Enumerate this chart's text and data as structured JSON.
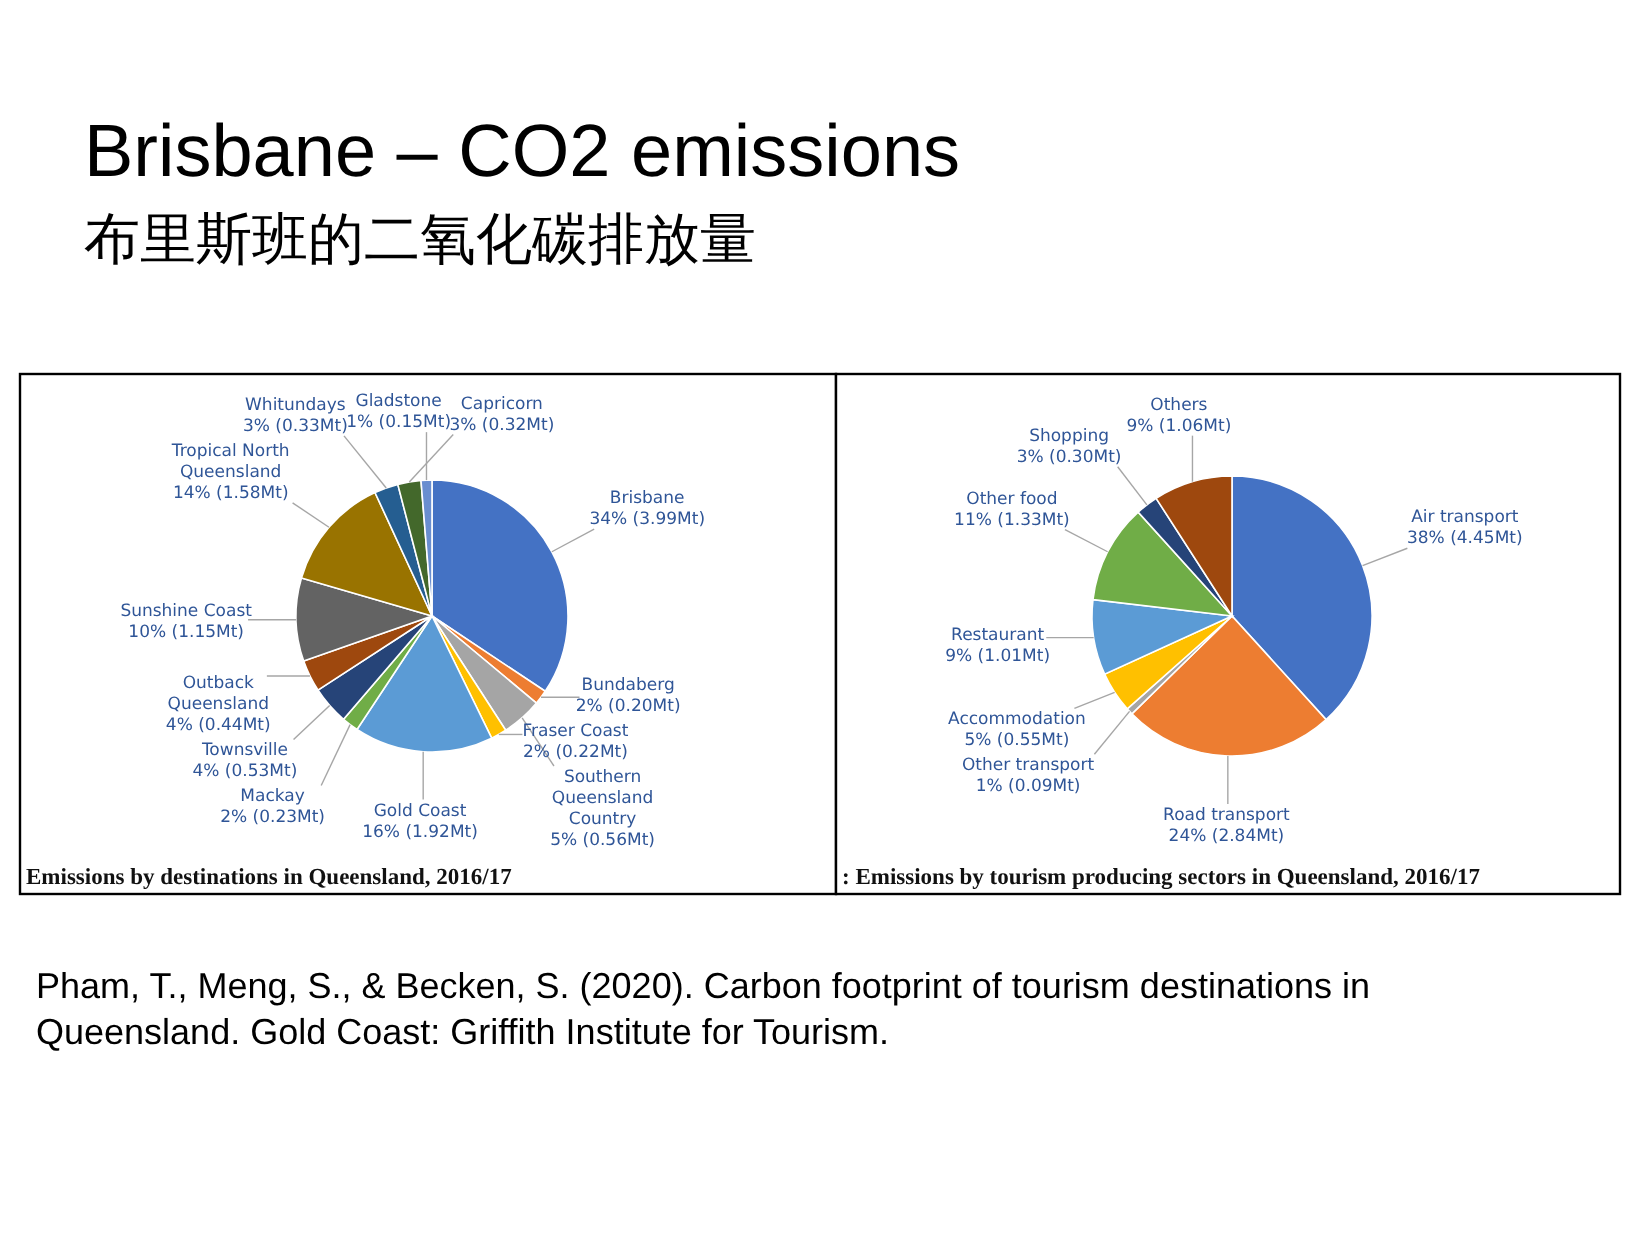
{
  "chart_data": [
    {
      "type": "pie",
      "title": "Brisbane – CO2 emissions",
      "subtitle": "布里斯班的二氧化碳排放量",
      "categories": [
        "Brisbane",
        "Bundaberg",
        "Southern Queensland Country",
        "Fraser Coast",
        "Gold Coast",
        "Mackay",
        "Townsville",
        "Outback Queensland",
        "Sunshine Coast",
        "Tropical North Queensland",
        "Whitundays",
        "Capricorn",
        "Gladstone"
      ],
      "values": [
        3.99,
        0.2,
        0.56,
        0.22,
        1.92,
        0.23,
        0.53,
        0.44,
        1.15,
        1.58,
        0.33,
        0.32,
        0.15
      ],
      "value_labels": [
        "34% (3.99Mt)",
        "2% (0.20Mt)",
        "5% (0.56Mt)",
        "2% (0.22Mt)",
        "16% (1.92Mt)",
        "2% (0.23Mt)",
        "4% (0.53Mt)",
        "4% (0.44Mt)",
        "10% (1.15Mt)",
        "14% (1.58Mt)",
        "3% (0.33Mt)",
        "3% (0.32Mt)",
        "1% (0.15Mt)"
      ],
      "colors": [
        "#4472c4",
        "#ed7d31",
        "#a5a5a5",
        "#ffc000",
        "#5b9bd5",
        "#70ad47",
        "#264478",
        "#9e480e",
        "#636363",
        "#997300",
        "#255e91",
        "#43682b",
        "#698ed0"
      ],
      "annotations": [
        "Emissions by destinations in Queensland, 2016/17"
      ]
    },
    {
      "type": "pie",
      "categories": [
        "Air transport",
        "Road transport",
        "Other transport",
        "Accommodation",
        "Restaurant",
        "Other food",
        "Shopping",
        "Others"
      ],
      "values": [
        4.45,
        2.84,
        0.09,
        0.55,
        1.01,
        1.33,
        0.3,
        1.06
      ],
      "value_labels": [
        "38% (4.45Mt)",
        "24% (2.84Mt)",
        "1% (0.09Mt)",
        "5% (0.55Mt)",
        "9% (1.01Mt)",
        "11% (1.33Mt)",
        "3% (0.30Mt)",
        "9% (1.06Mt)"
      ],
      "colors": [
        "#4472c4",
        "#ed7d31",
        "#a5a5a5",
        "#ffc000",
        "#5b9bd5",
        "#70ad47",
        "#264478",
        "#9e480e"
      ],
      "annotations": [
        ": Emissions by tourism producing sectors in Queensland, 2016/17",
        "Pham, T., Meng, S., & Becken, S. (2020). Carbon footprint of tourism destinations in Queensland. Gold Coast: Griffith Institute for Tourism."
      ]
    }
  ]
}
